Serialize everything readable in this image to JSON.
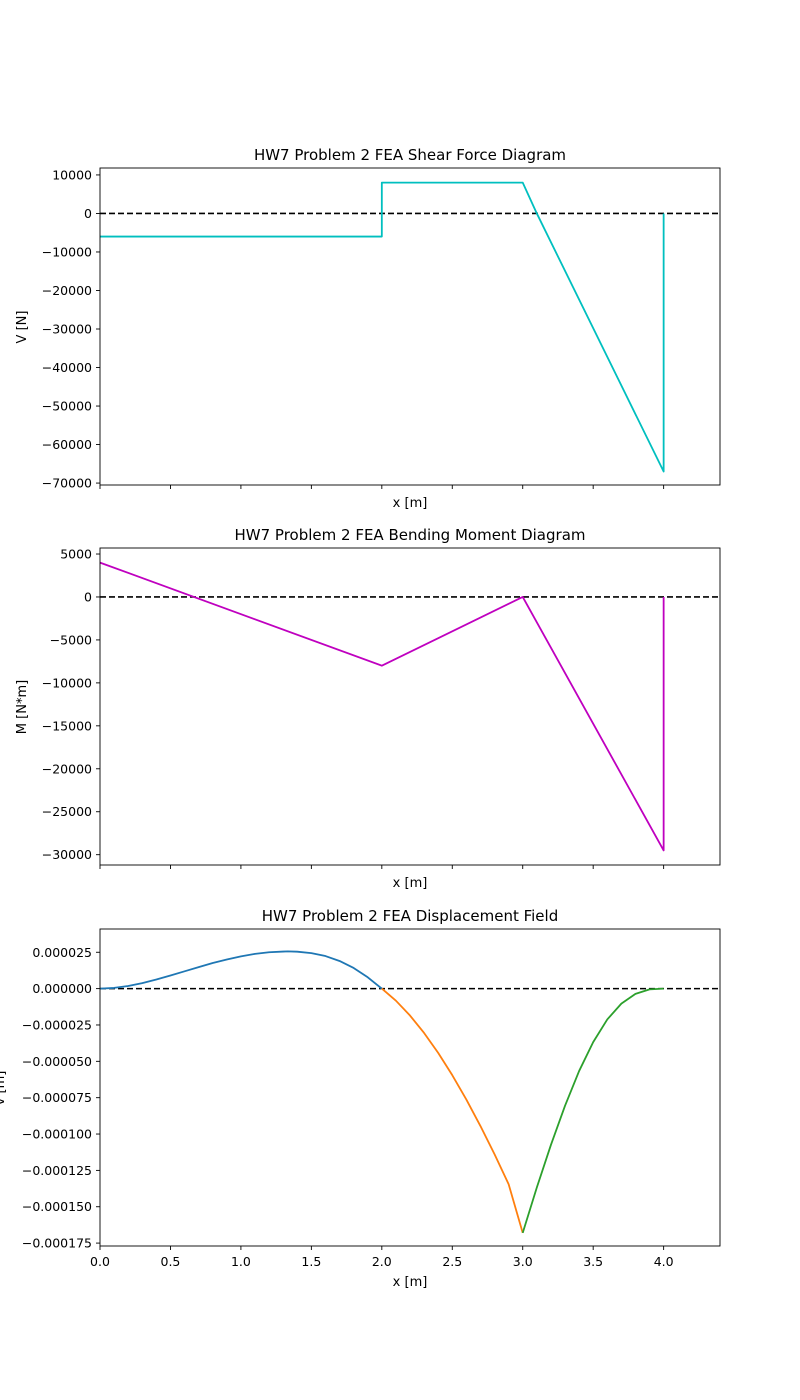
{
  "chart_data": [
    {
      "type": "line",
      "title": "HW7 Problem 2 FEA Shear Force Diagram",
      "xlabel": "x [m]",
      "ylabel": "V [N]",
      "xlim": [
        0,
        4.4
      ],
      "ylim": [
        -70500,
        11800
      ],
      "xticks": [
        0,
        0.5,
        1.0,
        1.5,
        2.0,
        2.5,
        3.0,
        3.5,
        4.0
      ],
      "show_xtick_labels": false,
      "yticks": [
        10000,
        0,
        -10000,
        -20000,
        -30000,
        -40000,
        -50000,
        -60000,
        -70000
      ],
      "ytick_labels": [
        "10000",
        "0",
        "−10000",
        "−20000",
        "−30000",
        "−40000",
        "−50000",
        "−60000",
        "−70000"
      ],
      "zero_line": true,
      "series": [
        {
          "color": "#00bfbf",
          "x": [
            0,
            2.0,
            2.0,
            3.0,
            3.1,
            4.0,
            4.0
          ],
          "y": [
            -6000,
            -6000,
            8000,
            8000,
            0,
            -67000,
            0
          ]
        }
      ]
    },
    {
      "type": "line",
      "title": "HW7 Problem 2 FEA Bending Moment Diagram",
      "xlabel": "x [m]",
      "ylabel": "M [N*m]",
      "xlim": [
        0,
        4.4
      ],
      "ylim": [
        -31200,
        5700
      ],
      "xticks": [
        0,
        0.5,
        1.0,
        1.5,
        2.0,
        2.5,
        3.0,
        3.5,
        4.0
      ],
      "show_xtick_labels": false,
      "yticks": [
        5000,
        0,
        -5000,
        -10000,
        -15000,
        -20000,
        -25000,
        -30000
      ],
      "ytick_labels": [
        "5000",
        "0",
        "−5000",
        "−10000",
        "−15000",
        "−20000",
        "−25000",
        "−30000"
      ],
      "zero_line": true,
      "series": [
        {
          "color": "#bf00bf",
          "x": [
            0,
            2.0,
            3.0,
            4.0,
            4.0
          ],
          "y": [
            4000,
            -8000,
            0,
            -29500,
            0
          ]
        }
      ]
    },
    {
      "type": "line",
      "title": "HW7 Problem 2 FEA Displacement Field",
      "xlabel": "x [m]",
      "ylabel": "v [m]",
      "xlim": [
        0,
        4.4
      ],
      "ylim": [
        -0.000177,
        4.1e-05
      ],
      "xticks": [
        0,
        0.5,
        1.0,
        1.5,
        2.0,
        2.5,
        3.0,
        3.5,
        4.0
      ],
      "show_xtick_labels": true,
      "xtick_labels": [
        "0.0",
        "0.5",
        "1.0",
        "1.5",
        "2.0",
        "2.5",
        "3.0",
        "3.5",
        "4.0"
      ],
      "yticks": [
        2.5e-05,
        0,
        -2.5e-05,
        -5e-05,
        -7.5e-05,
        -0.0001,
        -0.000125,
        -0.00015,
        -0.000175
      ],
      "ytick_labels": [
        "0.000025",
        "0.000000",
        "−0.000025",
        "−0.000050",
        "−0.000075",
        "−0.000100",
        "−0.000125",
        "−0.000150",
        "−0.000175"
      ],
      "zero_line": true,
      "series": [
        {
          "color": "#1f77b4",
          "x": [
            0,
            0.1,
            0.2,
            0.3,
            0.4,
            0.5,
            0.6,
            0.7,
            0.8,
            0.9,
            1.0,
            1.1,
            1.2,
            1.3,
            1.333,
            1.4,
            1.5,
            1.6,
            1.7,
            1.8,
            1.9,
            2.0
          ],
          "y": [
            0,
            4.84e-07,
            1.8e-06,
            3.78e-06,
            6.24e-06,
            9e-06,
            1.19e-05,
            1.48e-05,
            1.76e-05,
            2e-05,
            2.22e-05,
            2.39e-05,
            2.5e-05,
            2.55e-05,
            2.56e-05,
            2.54e-05,
            2.44e-05,
            2.24e-05,
            1.9e-05,
            1.42e-05,
            7.8e-06,
            0
          ]
        },
        {
          "color": "#ff7f0e",
          "x": [
            2.0,
            2.1,
            2.2,
            2.3,
            2.4,
            2.5,
            2.6,
            2.7,
            2.8,
            2.9,
            3.0
          ],
          "y": [
            0,
            -8.3e-06,
            -1.85e-05,
            -3.05e-05,
            -4.42e-05,
            -5.95e-05,
            -7.63e-05,
            -9.45e-05,
            -0.0001139,
            -0.0001345,
            -0.000168
          ]
        },
        {
          "color": "#2ca02c",
          "x": [
            3.0,
            3.1,
            3.2,
            3.3,
            3.4,
            3.5,
            3.6,
            3.7,
            3.8,
            3.9,
            4.0
          ],
          "y": [
            -0.000168,
            -0.0001368,
            -0.0001075,
            -8.06e-05,
            -5.67e-05,
            -3.68e-05,
            -2.12e-05,
            -1.03e-05,
            -3.6e-06,
            -5e-07,
            0
          ]
        }
      ]
    }
  ]
}
